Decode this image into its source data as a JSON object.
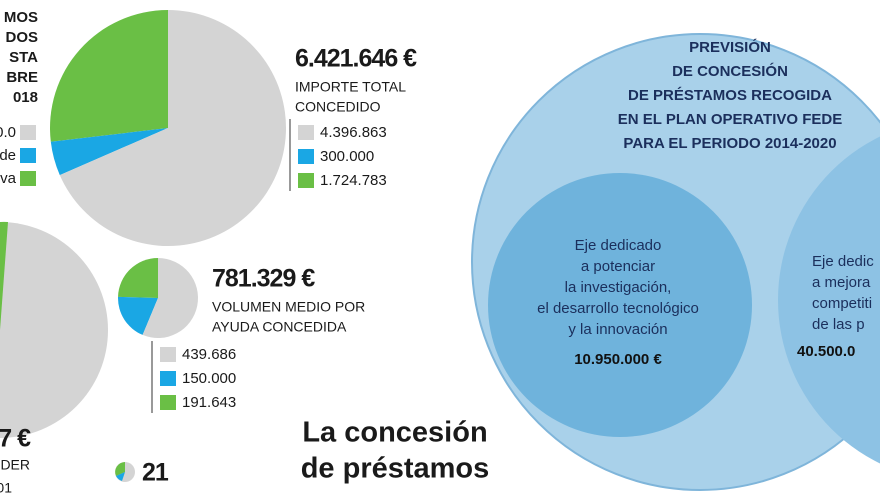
{
  "chart_data": [
    {
      "type": "pie",
      "title": "6.421.646 €",
      "subtitle": [
        "IMPORTE TOTAL",
        "CONCEDIDO"
      ],
      "values": [
        4396863,
        300000,
        1724783
      ],
      "value_labels": [
        "4.396.863",
        "300.000",
        "1.724.783"
      ],
      "colors": [
        "#d4d4d4",
        "#1aa7e4",
        "#6abf45"
      ]
    },
    {
      "type": "pie",
      "title": "781.329 €",
      "subtitle": [
        "VOLUMEN MEDIO POR",
        "AYUDA CONCEDIDA"
      ],
      "values": [
        439686,
        150000,
        191643
      ],
      "value_labels": [
        "439.686",
        "150.000",
        "191.643"
      ],
      "colors": [
        "#d4d4d4",
        "#1aa7e4",
        "#6abf45"
      ]
    }
  ],
  "left_fragments": {
    "heading": [
      "MOS",
      "DOS",
      "STA",
      "BRE",
      "018"
    ],
    "legend": [
      "0.0",
      "de",
      "va"
    ],
    "total": "7 €",
    "caption": "DER",
    "row": "01",
    "small": "21"
  },
  "forecast": {
    "title": [
      "PREVISIÓN",
      "DE CONCESIÓN",
      "DE PRÉSTAMOS RECOGIDA",
      "EN EL PLAN OPERATIVO FEDE",
      "PARA EL PERIODO 2014-2020"
    ],
    "axis1": {
      "text": [
        "Eje dedicado",
        "a potenciar",
        "la investigación,",
        "el desarrollo tecnológico",
        "y la innovación"
      ],
      "amount": "10.950.000 €"
    },
    "axis2": {
      "text": [
        "Eje dedic",
        "a mejora",
        "competiti",
        "de las p"
      ],
      "amount": "40.500.0"
    }
  },
  "headline": [
    "La concesión",
    "de préstamos"
  ]
}
